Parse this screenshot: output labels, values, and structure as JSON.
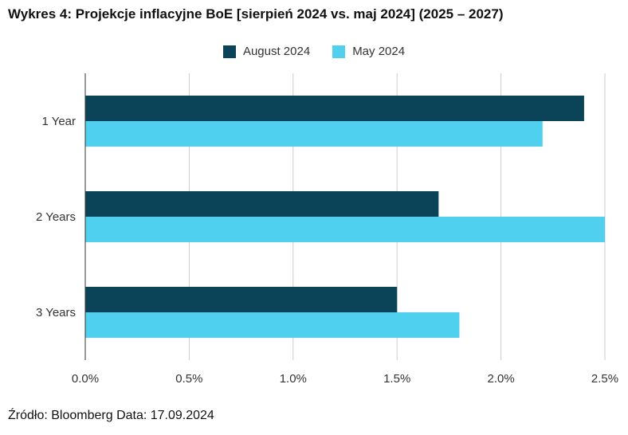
{
  "title": "Wykres 4: Projekcje inflacyjne BoE [sierpień 2024 vs. maj 2024] (2025 – 2027)",
  "source": "Źródło: Bloomberg Data: 17.09.2024",
  "colors": {
    "august": "#0b4359",
    "may": "#4fd0ef",
    "grid": "#cccccc",
    "axis": "#333333"
  },
  "chart_data": {
    "type": "bar",
    "orientation": "horizontal",
    "categories": [
      "1 Year",
      "2 Years",
      "3 Years"
    ],
    "series": [
      {
        "name": "August 2024",
        "values": [
          2.4,
          1.7,
          1.5
        ]
      },
      {
        "name": "May 2024",
        "values": [
          2.2,
          2.5,
          1.8
        ]
      }
    ],
    "xlim": [
      0,
      2.5
    ],
    "x_ticks": [
      "0.0%",
      "0.5%",
      "1.0%",
      "1.5%",
      "2.0%",
      "2.5%"
    ],
    "grid": true,
    "legend_position": "top-center"
  }
}
